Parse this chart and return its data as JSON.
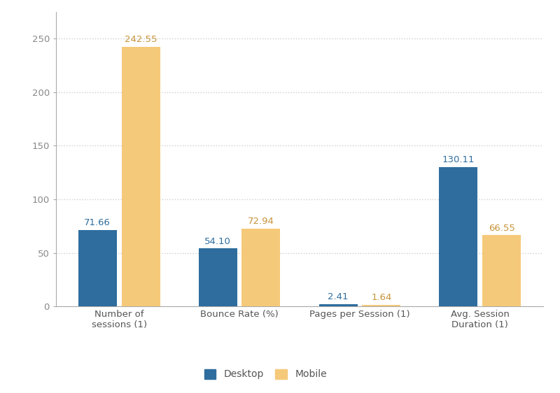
{
  "categories": [
    "Number of\nsessions (1)",
    "Bounce Rate (%)",
    "Pages per Session (1)",
    "Avg. Session\nDuration (1)"
  ],
  "desktop_values": [
    71.66,
    54.1,
    2.41,
    130.11
  ],
  "mobile_values": [
    242.55,
    72.94,
    1.64,
    66.55
  ],
  "desktop_color": "#2e6d9e",
  "mobile_color": "#f5c97a",
  "desktop_label": "Desktop",
  "mobile_label": "Mobile",
  "ylim": [
    0,
    275
  ],
  "yticks": [
    0,
    50,
    100,
    150,
    200,
    250
  ],
  "bar_width": 0.32,
  "background_color": "#ffffff",
  "grid_color": "#cccccc",
  "value_fontsize": 9.5,
  "legend_fontsize": 10,
  "tick_fontsize": 9.5,
  "desktop_label_color": "#2e6d9e",
  "mobile_label_color": "#c8943a"
}
